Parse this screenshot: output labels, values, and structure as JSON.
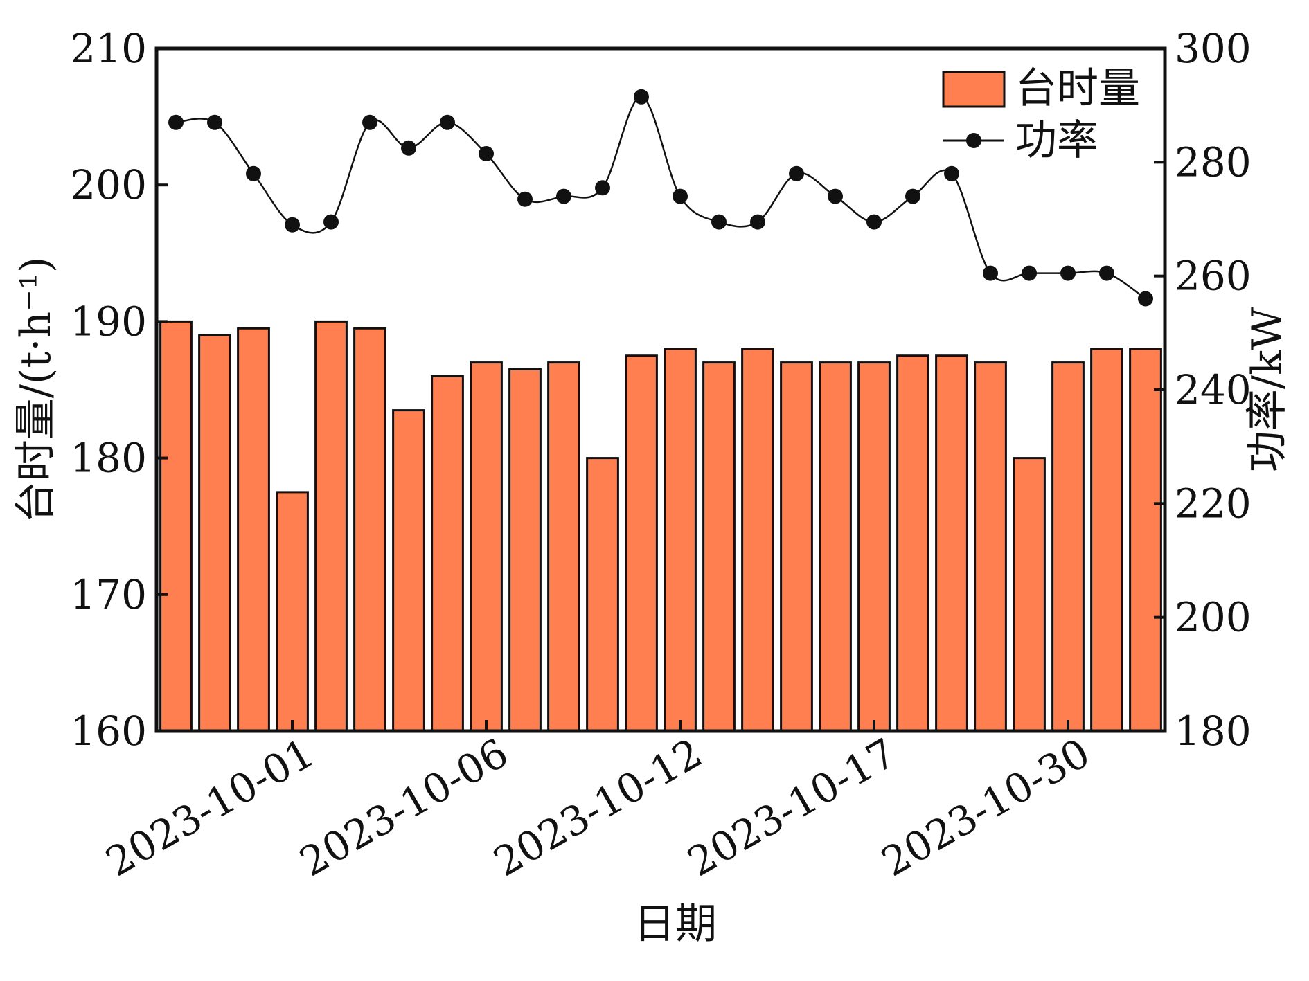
{
  "chart_data": {
    "type": "bar",
    "categories": [
      "",
      "",
      "",
      "2023-10-01",
      "",
      "",
      "",
      "",
      "2023-10-06",
      "",
      "",
      "",
      "",
      "2023-10-12",
      "",
      "",
      "",
      "",
      "2023-10-17",
      "",
      "",
      "",
      "",
      "2023-10-30",
      "",
      ""
    ],
    "x_tick_labels": [
      "2023-10-01",
      "2023-10-06",
      "2023-10-12",
      "2023-10-17",
      "2023-10-30"
    ],
    "x_tick_indices": [
      3,
      8,
      13,
      18,
      23
    ],
    "series": [
      {
        "name": "台时量",
        "type": "bar",
        "axis": "left",
        "color": "#ff7f50",
        "values": [
          190,
          189,
          189.5,
          177.5,
          190,
          189.5,
          183.5,
          186,
          187,
          186.5,
          187,
          180,
          187.5,
          188,
          187,
          188,
          187,
          187,
          187,
          187.5,
          187.5,
          187,
          180,
          187,
          188,
          188
        ]
      },
      {
        "name": "功率",
        "type": "line",
        "axis": "right",
        "color": "#111111",
        "values": [
          287,
          287,
          278,
          269,
          269.5,
          287,
          282.5,
          287,
          281.5,
          273.5,
          274,
          275.5,
          291.5,
          274,
          269.5,
          269.5,
          278,
          274,
          269.5,
          274,
          278,
          260.5,
          260.5,
          260.5,
          260.5,
          256
        ]
      }
    ],
    "xlabel": "日期",
    "ylabel_left": "台时量/(t·h⁻¹)",
    "ylabel_right": "功率/kW",
    "ylim_left": [
      160,
      210
    ],
    "yticks_left": [
      160,
      170,
      180,
      190,
      200,
      210
    ],
    "ylim_right": [
      180,
      300
    ],
    "yticks_right": [
      180,
      200,
      220,
      240,
      260,
      280,
      300
    ],
    "grid": false,
    "legend_position": "top-right"
  }
}
